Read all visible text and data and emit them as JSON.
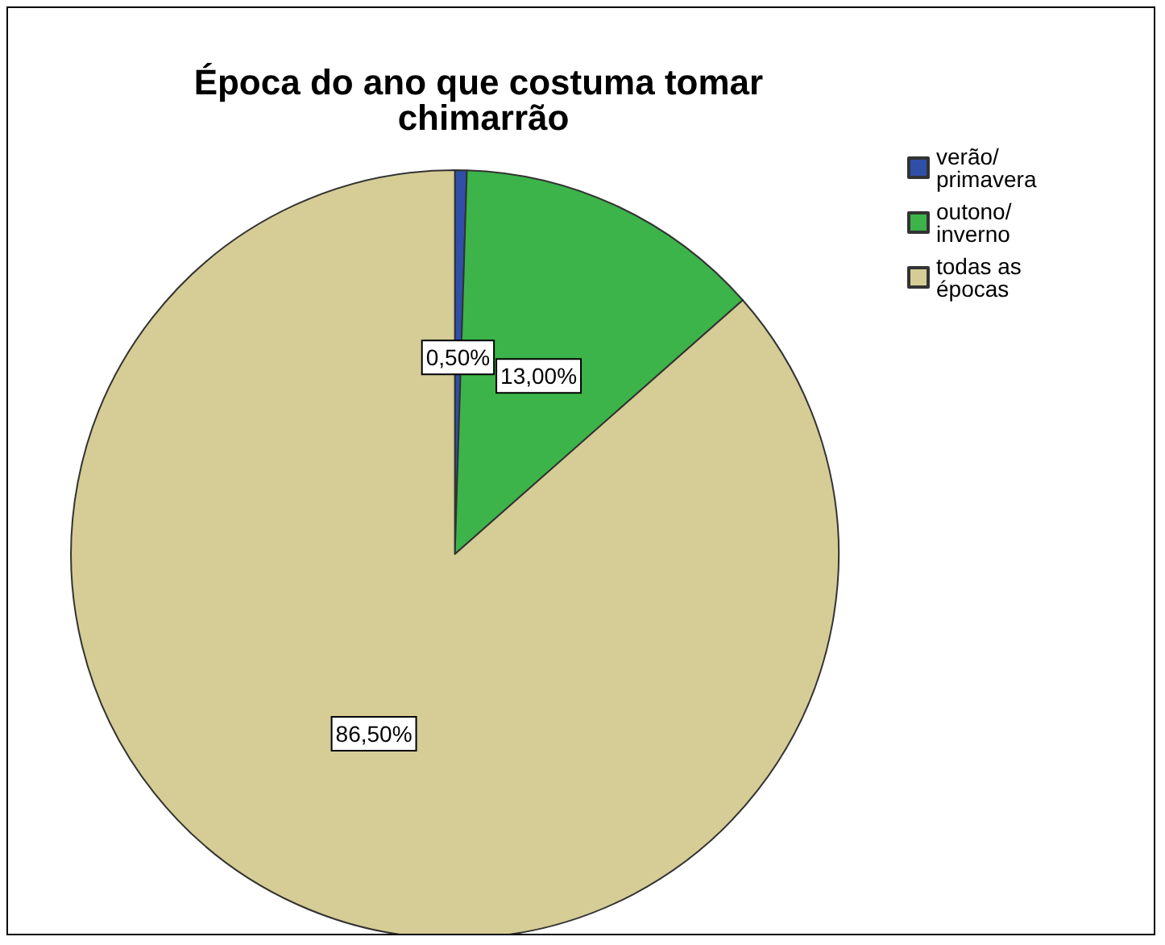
{
  "chart_data": {
    "type": "pie",
    "title": "Época do ano que costuma tomar chimarrão",
    "categories": [
      "verão/ primavera",
      "outono/ inverno",
      "todas as épocas"
    ],
    "values": [
      0.5,
      13,
      86.5
    ],
    "colors": [
      "#2f4fa8",
      "#3cb44a",
      "#d5cd95"
    ],
    "value_labels": [
      "0,50%",
      "13,00%",
      "86,50%"
    ],
    "legend": "top right"
  }
}
